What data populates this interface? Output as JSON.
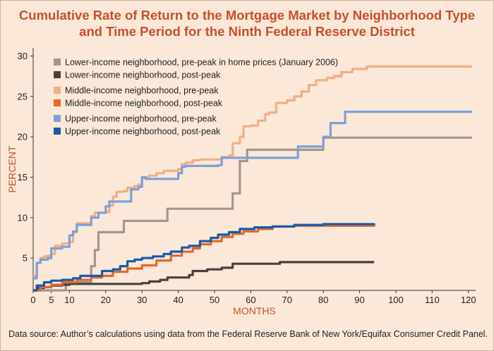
{
  "title": {
    "line1": "Cumulative Rate of Return to the Mortgage Market by Neighborhood Type",
    "line2": "and Time Period for the Ninth Federal Reserve District"
  },
  "source": "Data source: Author’s calculations using data from the Federal Reserve Bank of New York/Equifax Consumer Credit Panel.",
  "colors": {
    "background": "#fbe8d8",
    "title": "#c8502a",
    "axis_label": "#c8502a"
  },
  "chart_data": {
    "type": "line",
    "xlabel": "MONTHS",
    "ylabel": "PERCENT",
    "xlim": [
      0,
      122
    ],
    "ylim": [
      1,
      31
    ],
    "x_ticks": [
      0,
      5,
      10,
      20,
      30,
      40,
      50,
      60,
      70,
      80,
      90,
      100,
      110,
      120
    ],
    "y_ticks": [
      5,
      10,
      15,
      20,
      25,
      30
    ],
    "grid": false,
    "legend_position": "top-left",
    "series": [
      {
        "name": "Lower-income neighborhood, pre-peak in home prices (January 2006)",
        "color": "#a39690",
        "points": [
          [
            0,
            1
          ],
          [
            8,
            1
          ],
          [
            9,
            2
          ],
          [
            15,
            2
          ],
          [
            16,
            4
          ],
          [
            17,
            6
          ],
          [
            18,
            8.2
          ],
          [
            24,
            8.2
          ],
          [
            25,
            9.6
          ],
          [
            36,
            9.6
          ],
          [
            37,
            11.1
          ],
          [
            54,
            11.1
          ],
          [
            55,
            13
          ],
          [
            57,
            17
          ],
          [
            58,
            17
          ],
          [
            59,
            18.4
          ],
          [
            79,
            18.4
          ],
          [
            80,
            19.9
          ],
          [
            121,
            19.9
          ]
        ]
      },
      {
        "name": "Lower-income neighborhood, post-peak",
        "color": "#4a3f3c",
        "points": [
          [
            0,
            1
          ],
          [
            1,
            1.3
          ],
          [
            3,
            1.4
          ],
          [
            5,
            1.6
          ],
          [
            8,
            1.7
          ],
          [
            10,
            1.8
          ],
          [
            25,
            1.8
          ],
          [
            30,
            1.9
          ],
          [
            32,
            2.1
          ],
          [
            35,
            2.3
          ],
          [
            37,
            2.6
          ],
          [
            41,
            2.6
          ],
          [
            43,
            2.9
          ],
          [
            44,
            3.4
          ],
          [
            48,
            3.6
          ],
          [
            52,
            3.8
          ],
          [
            55,
            4.3
          ],
          [
            67,
            4.3
          ],
          [
            68,
            4.5
          ],
          [
            94,
            4.5
          ]
        ]
      },
      {
        "name": "Middle-income neighborhood, pre-peak",
        "color": "#f2ae82",
        "points": [
          [
            0,
            2.8
          ],
          [
            1,
            4.4
          ],
          [
            2,
            5
          ],
          [
            3,
            5.2
          ],
          [
            4,
            5.3
          ],
          [
            5,
            5.5
          ],
          [
            6,
            6.5
          ],
          [
            8,
            6.8
          ],
          [
            10,
            7
          ],
          [
            11,
            8.2
          ],
          [
            12,
            9.3
          ],
          [
            15,
            9.3
          ],
          [
            16,
            10.2
          ],
          [
            17,
            10.6
          ],
          [
            18,
            10.6
          ],
          [
            20,
            10.7
          ],
          [
            21,
            11.5
          ],
          [
            22,
            12.6
          ],
          [
            23,
            13.2
          ],
          [
            25,
            13.3
          ],
          [
            26,
            13.7
          ],
          [
            28,
            13.9
          ],
          [
            29,
            14.1
          ],
          [
            30,
            14.9
          ],
          [
            31,
            15
          ],
          [
            32,
            15.2
          ],
          [
            34,
            15.5
          ],
          [
            36,
            15.8
          ],
          [
            40,
            16
          ],
          [
            41,
            16.6
          ],
          [
            42,
            16.8
          ],
          [
            44,
            17.1
          ],
          [
            46,
            17.2
          ],
          [
            52,
            17.5
          ],
          [
            54,
            17.7
          ],
          [
            55,
            19.2
          ],
          [
            57,
            20
          ],
          [
            58,
            21.3
          ],
          [
            60,
            21.4
          ],
          [
            62,
            22
          ],
          [
            64,
            22.8
          ],
          [
            65,
            23
          ],
          [
            67,
            24.2
          ],
          [
            70,
            24.5
          ],
          [
            72,
            25
          ],
          [
            74,
            25.6
          ],
          [
            76,
            26.4
          ],
          [
            78,
            27
          ],
          [
            81,
            27.3
          ],
          [
            83,
            27.5
          ],
          [
            85,
            28
          ],
          [
            88,
            28.4
          ],
          [
            92,
            28.7
          ],
          [
            121,
            28.7
          ]
        ]
      },
      {
        "name": "Middle-income neighborhood, post-peak",
        "color": "#e06a2c",
        "points": [
          [
            0,
            1
          ],
          [
            2,
            1.4
          ],
          [
            5,
            1.7
          ],
          [
            8,
            2
          ],
          [
            12,
            2.3
          ],
          [
            16,
            2.6
          ],
          [
            19,
            2.8
          ],
          [
            22,
            3.3
          ],
          [
            26,
            3.7
          ],
          [
            30,
            4.1
          ],
          [
            34,
            4.7
          ],
          [
            38,
            5.3
          ],
          [
            41,
            5.8
          ],
          [
            44,
            6.2
          ],
          [
            46,
            6.7
          ],
          [
            49,
            7.1
          ],
          [
            52,
            7.6
          ],
          [
            55,
            8
          ],
          [
            58,
            8.3
          ],
          [
            62,
            8.6
          ],
          [
            66,
            8.9
          ],
          [
            72,
            9
          ],
          [
            80,
            9
          ],
          [
            94,
            9.1
          ]
        ]
      },
      {
        "name": "Upper-income neighborhood, pre-peak",
        "color": "#7f9fd8",
        "points": [
          [
            0,
            2.5
          ],
          [
            1,
            4.4
          ],
          [
            2,
            4.8
          ],
          [
            4,
            5
          ],
          [
            5,
            6.2
          ],
          [
            8,
            6.4
          ],
          [
            10,
            7.8
          ],
          [
            11,
            8.3
          ],
          [
            12,
            9.1
          ],
          [
            15,
            9.1
          ],
          [
            16,
            10
          ],
          [
            18,
            10.6
          ],
          [
            20,
            11.4
          ],
          [
            21,
            12
          ],
          [
            26,
            12
          ],
          [
            27,
            13.5
          ],
          [
            29,
            13.8
          ],
          [
            30,
            15
          ],
          [
            31,
            14.8
          ],
          [
            40,
            15.5
          ],
          [
            41,
            16.3
          ],
          [
            42,
            16.4
          ],
          [
            51,
            16.5
          ],
          [
            52,
            17.4
          ],
          [
            72,
            17.4
          ],
          [
            73,
            18.8
          ],
          [
            79,
            18.8
          ],
          [
            80,
            20
          ],
          [
            81,
            20
          ],
          [
            82,
            21.7
          ],
          [
            85,
            21.7
          ],
          [
            86,
            23.1
          ],
          [
            121,
            23.1
          ]
        ]
      },
      {
        "name": "Upper-income neighborhood, post-peak",
        "color": "#1a5aa8",
        "points": [
          [
            0,
            1
          ],
          [
            1,
            1.6
          ],
          [
            3,
            2
          ],
          [
            5,
            2.2
          ],
          [
            8,
            2.3
          ],
          [
            11,
            2.5
          ],
          [
            13,
            2.8
          ],
          [
            17,
            2.8
          ],
          [
            19,
            3.4
          ],
          [
            22,
            3.6
          ],
          [
            24,
            4
          ],
          [
            26,
            4.6
          ],
          [
            28,
            4.8
          ],
          [
            30,
            5
          ],
          [
            33,
            5.2
          ],
          [
            36,
            5.5
          ],
          [
            38,
            5.8
          ],
          [
            41,
            6.3
          ],
          [
            43,
            6.5
          ],
          [
            46,
            7.1
          ],
          [
            49,
            7.5
          ],
          [
            51,
            7.9
          ],
          [
            54,
            8.2
          ],
          [
            57,
            8.6
          ],
          [
            61,
            8.8
          ],
          [
            66,
            8.9
          ],
          [
            72,
            9.1
          ],
          [
            80,
            9.2
          ],
          [
            94,
            9.3
          ]
        ]
      }
    ]
  }
}
